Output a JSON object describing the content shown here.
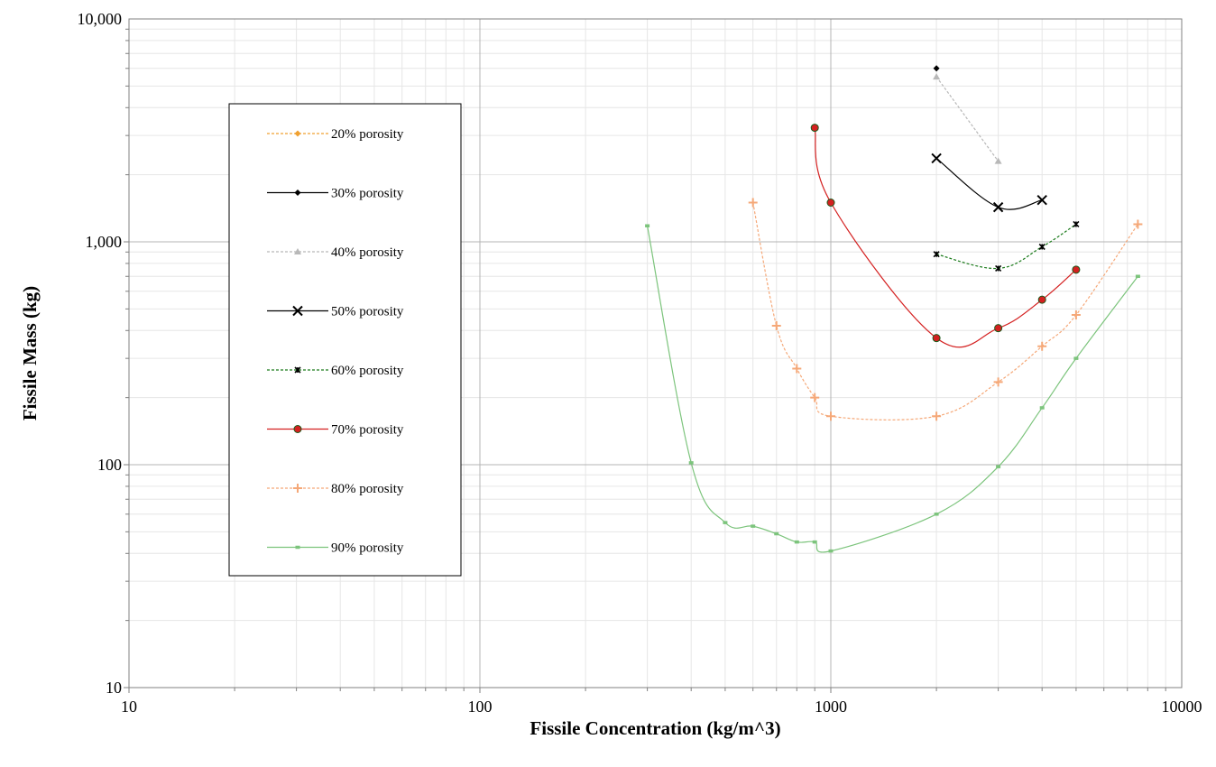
{
  "chart_data": {
    "type": "scatter",
    "xscale": "log",
    "yscale": "log",
    "xlim": [
      10,
      10000
    ],
    "ylim": [
      10,
      10000
    ],
    "grid": true,
    "legend_position": "left",
    "xlabel": "Fissile Concentration  (kg/m^3)",
    "ylabel": "Fissile Mass  (kg)",
    "x_ticks": [
      10,
      100,
      1000,
      10000
    ],
    "x_tick_labels": [
      "10",
      "100",
      "1000",
      "10000"
    ],
    "y_ticks": [
      10,
      100,
      1000,
      10000
    ],
    "y_tick_labels": [
      "10",
      "100",
      "1,000",
      "10,000"
    ],
    "series": [
      {
        "name": "20% porosity",
        "color": "#f0a030",
        "marker": "diamond",
        "dash": "3,2",
        "x": [],
        "y": []
      },
      {
        "name": "30% porosity",
        "color": "#000000",
        "marker": "diamond",
        "dash": "",
        "x": [
          2000
        ],
        "y": [
          6000
        ]
      },
      {
        "name": "40% porosity",
        "color": "#b8b8b8",
        "marker": "triangle",
        "dash": "3,2",
        "x": [
          2000,
          3000
        ],
        "y": [
          5500,
          2300
        ]
      },
      {
        "name": "50% porosity",
        "color": "#000000",
        "marker": "x",
        "dash": "",
        "x": [
          2000,
          3000,
          4000
        ],
        "y": [
          2370,
          1430,
          1540
        ]
      },
      {
        "name": "60% porosity",
        "color": "#1a7a1a",
        "marker": "star",
        "dash": "3,2",
        "x": [
          2000,
          3000,
          4000,
          5000
        ],
        "y": [
          880,
          760,
          950,
          1200
        ]
      },
      {
        "name": "70% porosity",
        "color": "#d42020",
        "marker": "circle",
        "dash": "",
        "x": [
          900,
          1000,
          2000,
          3000,
          4000,
          5000
        ],
        "y": [
          3250,
          1500,
          370,
          410,
          550,
          750
        ]
      },
      {
        "name": "80% porosity",
        "color": "#f5a878",
        "marker": "plus",
        "dash": "3,2",
        "x": [
          600,
          700,
          800,
          900,
          1000,
          2000,
          3000,
          4000,
          5000,
          7500
        ],
        "y": [
          1500,
          420,
          270,
          200,
          165,
          165,
          235,
          340,
          470,
          1200
        ]
      },
      {
        "name": "90% porosity",
        "color": "#7cc47c",
        "marker": "square",
        "dash": "",
        "x": [
          300,
          400,
          500,
          600,
          700,
          800,
          900,
          1000,
          2000,
          3000,
          4000,
          5000,
          7500
        ],
        "y": [
          1180,
          102,
          55,
          53,
          49,
          45,
          45,
          41,
          60,
          98,
          180,
          300,
          700
        ]
      }
    ]
  }
}
